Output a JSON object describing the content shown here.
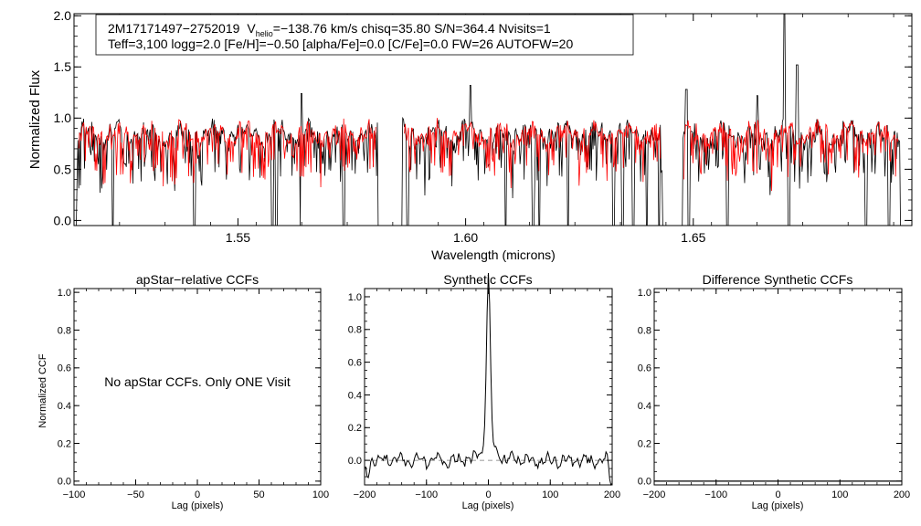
{
  "chart_data": [
    {
      "type": "line",
      "id": "spectrum",
      "title_line1": {
        "id": "2M17171497−2752019",
        "vlabel": "V",
        "vsub": "helio",
        "vtext": "=−138.76 km/s  chisq=35.80  S/N=364.4  Nvisits=1"
      },
      "title_line2": "Teff=3,100 logg=2.0 [Fe/H]=−0.50 [alpha/Fe]=0.0 [C/Fe]=0.0 FW=26 AUTOFW=20",
      "xlabel": "Wavelength (microns)",
      "ylabel": "Normalized Flux",
      "xlim": [
        1.514,
        1.698
      ],
      "ylim": [
        -0.05,
        2.02
      ],
      "xticks": [
        1.55,
        1.6,
        1.65
      ],
      "xtick_labels": [
        "1.55",
        "1.60",
        "1.65"
      ],
      "yticks": [
        0.0,
        0.5,
        1.0,
        1.5,
        2.0
      ],
      "ytick_labels": [
        "0.0",
        "0.5",
        "1.0",
        "1.5",
        "2.0"
      ],
      "chip_ranges": [
        [
          1.5145,
          1.5808
        ],
        [
          1.586,
          1.6433
        ],
        [
          1.6474,
          1.6955
        ]
      ],
      "series": [
        {
          "name": "observed",
          "color": "#000000"
        },
        {
          "name": "synthetic",
          "color": "#ff0000"
        }
      ],
      "absorption_lines": [
        1.5225,
        1.5405,
        1.5575,
        1.5585,
        1.5638,
        1.5732,
        1.5873,
        1.6088,
        1.6148,
        1.6162,
        1.6225,
        1.6325,
        1.6345,
        1.6368,
        1.6398,
        1.6425,
        1.6475,
        1.649,
        1.6575,
        1.671,
        1.688,
        1.693
      ],
      "emission_spikes": [
        [
          1.67,
          2.1
        ],
        [
          1.6728,
          1.52
        ],
        [
          1.601,
          1.32
        ],
        [
          1.6485,
          1.28
        ],
        [
          1.664,
          1.22
        ],
        [
          1.564,
          1.24
        ]
      ]
    },
    {
      "type": "line",
      "id": "apstar-ccf",
      "title": "apStar−relative CCFs",
      "ylabel": "Normalized CCF",
      "xlabel": "Lag (pixels)",
      "xlim": [
        -100,
        100
      ],
      "ylim": [
        -0.02,
        1.02
      ],
      "xticks": [
        -100,
        -50,
        0,
        50,
        100
      ],
      "xtick_labels": [
        "−100",
        "−50",
        "0",
        "50",
        "100"
      ],
      "yticks": [
        0.0,
        0.2,
        0.4,
        0.6,
        0.8,
        1.0
      ],
      "ytick_labels": [
        "0.0",
        "0.2",
        "0.4",
        "0.6",
        "0.8",
        "1.0"
      ],
      "message": "No apStar CCFs.  Only ONE Visit"
    },
    {
      "type": "line",
      "id": "synthetic-ccf",
      "title": "Synthetic CCFs",
      "xlabel": "Lag (pixels)",
      "xlim": [
        -200,
        200
      ],
      "ylim": [
        -0.15,
        1.05
      ],
      "xticks": [
        -200,
        -100,
        0,
        100,
        200
      ],
      "xtick_labels": [
        "−200",
        "−100",
        "0",
        "100",
        "200"
      ],
      "yticks": [
        0.0,
        0.2,
        0.4,
        0.6,
        0.8,
        1.0
      ],
      "ytick_labels": [
        "0.0",
        "0.2",
        "0.4",
        "0.6",
        "0.8",
        "1.0"
      ],
      "peak_lag": 0,
      "peak_value": 1.0,
      "baseline": 0.0
    },
    {
      "type": "line",
      "id": "difference-ccf",
      "title": "Difference Synthetic CCFs",
      "xlabel": "Lag (pixels)",
      "xlim": [
        -200,
        200
      ],
      "ylim": [
        -0.02,
        1.02
      ],
      "xticks": [
        -200,
        -100,
        0,
        100,
        200
      ],
      "xtick_labels": [
        "−200",
        "−100",
        "0",
        "100",
        "200"
      ],
      "yticks": [
        0.0,
        0.2,
        0.4,
        0.6,
        0.8,
        1.0
      ],
      "ytick_labels": [
        "0.0",
        "0.2",
        "0.4",
        "0.6",
        "0.8",
        "1.0"
      ],
      "values_const": 0.0
    }
  ]
}
